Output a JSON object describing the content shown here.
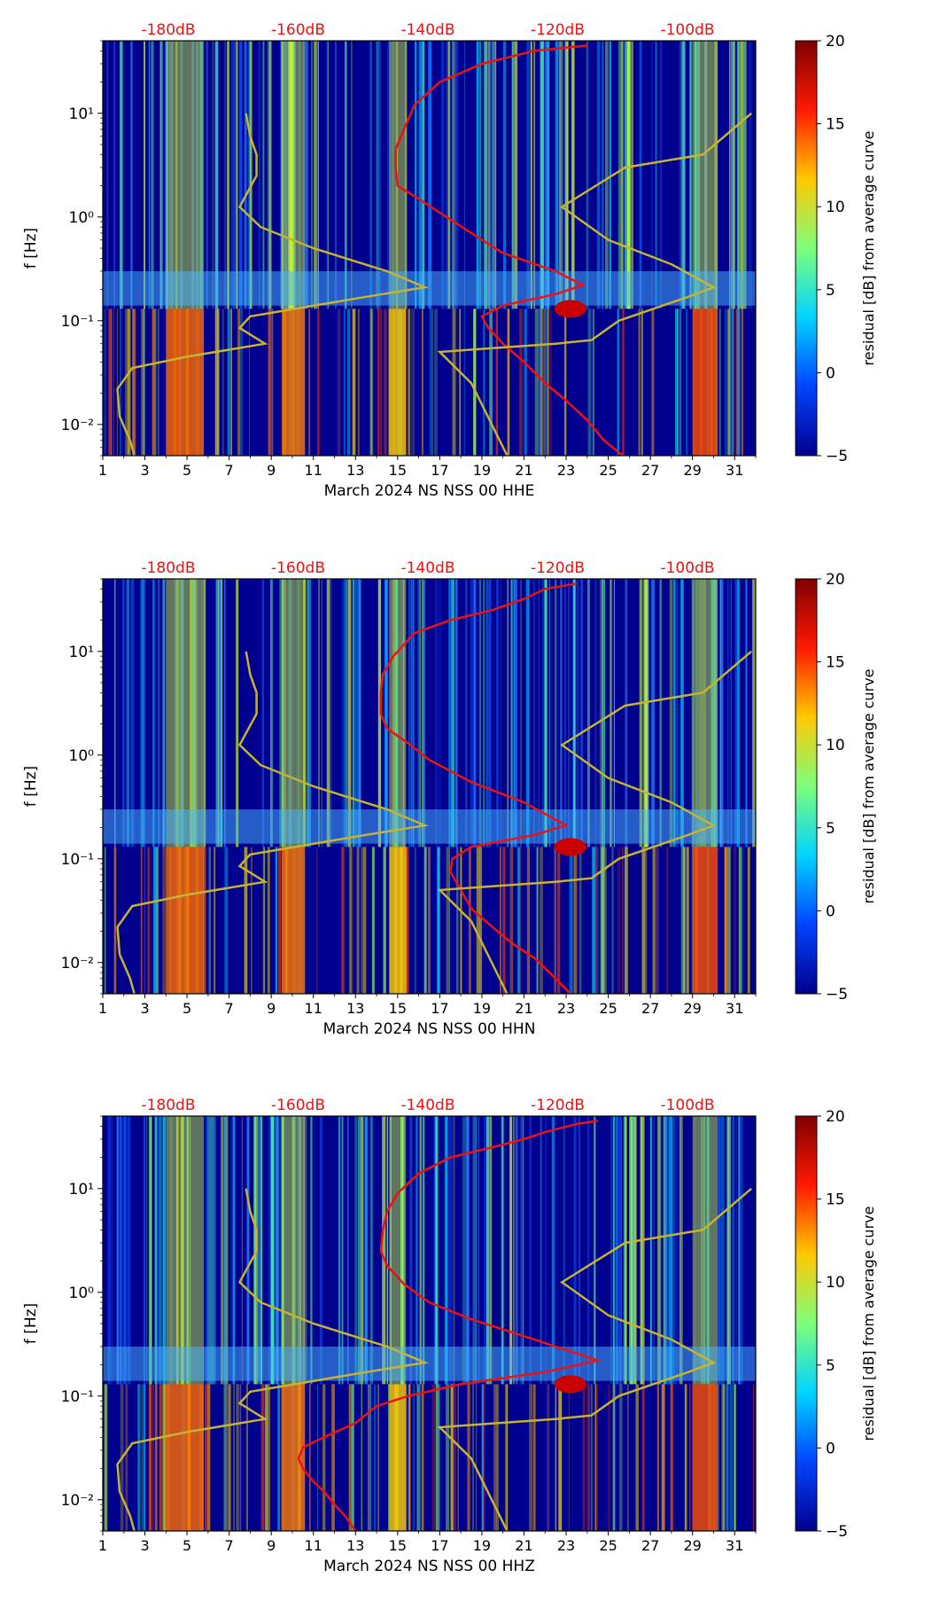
{
  "colorbar": {
    "label": "residual [dB] from average curve",
    "ticks": [
      "20",
      "15",
      "10",
      "5",
      "0",
      "−5"
    ],
    "tick_values": [
      20,
      15,
      10,
      5,
      0,
      -5
    ],
    "colors": [
      "#7f0000",
      "#ff1a00",
      "#ffc800",
      "#7dff7a",
      "#00d4ff",
      "#0044ff",
      "#00008f"
    ]
  },
  "colors": {
    "background": "#00008f",
    "psd_curve": "#ee1111",
    "model_curve": "#c8b232",
    "db_label": "#ee1111"
  },
  "chart_data": [
    {
      "type": "heatmap",
      "channel": "HHE",
      "xlabel": "March 2024 NS NSS 00 HHE",
      "ylabel": "f [Hz]",
      "xlim": [
        1,
        32
      ],
      "ylim": [
        0.005,
        50
      ],
      "yscale": "log",
      "x_ticks": [
        "1",
        "3",
        "5",
        "7",
        "9",
        "11",
        "13",
        "15",
        "17",
        "19",
        "21",
        "23",
        "25",
        "27",
        "29",
        "31"
      ],
      "y_ticks": [
        "10⁻²",
        "10⁻¹",
        "10⁰",
        "10¹"
      ],
      "top_labels": [
        "-180dB",
        "-160dB",
        "-140dB",
        "-120dB",
        "-100dB"
      ],
      "colorbar_range": [
        -5,
        20
      ],
      "series": [
        {
          "name": "mean PSD",
          "points": [
            [
              25.7,
              0.005
            ],
            [
              24.8,
              0.007
            ],
            [
              24.0,
              0.011
            ],
            [
              23.0,
              0.017
            ],
            [
              22.0,
              0.025
            ],
            [
              21.0,
              0.04
            ],
            [
              20.0,
              0.06
            ],
            [
              19.3,
              0.085
            ],
            [
              19.0,
              0.11
            ],
            [
              20.0,
              0.14
            ],
            [
              22.5,
              0.18
            ],
            [
              23.8,
              0.22
            ],
            [
              22.5,
              0.3
            ],
            [
              20.0,
              0.45
            ],
            [
              18.5,
              0.7
            ],
            [
              17.0,
              1.1
            ],
            [
              16.0,
              1.5
            ],
            [
              15.0,
              2.0
            ],
            [
              14.9,
              3.0
            ],
            [
              14.9,
              4.5
            ],
            [
              15.3,
              7
            ],
            [
              15.8,
              12
            ],
            [
              17.0,
              20
            ],
            [
              19.0,
              30
            ],
            [
              21.5,
              40
            ],
            [
              24.0,
              45
            ]
          ]
        },
        {
          "name": "noise model",
          "points": [
            [
              2.5,
              0.005
            ],
            [
              2.3,
              0.007
            ],
            [
              1.8,
              0.012
            ],
            [
              1.7,
              0.022
            ],
            [
              2.4,
              0.035
            ],
            [
              5.0,
              0.045
            ],
            [
              8.7,
              0.06
            ],
            [
              7.5,
              0.085
            ],
            [
              8.0,
              0.11
            ],
            [
              13.5,
              0.17
            ],
            [
              16.3,
              0.21
            ],
            [
              14.5,
              0.3
            ],
            [
              11.0,
              0.5
            ],
            [
              8.5,
              0.8
            ],
            [
              7.5,
              1.25
            ],
            [
              8.3,
              2.5
            ],
            [
              8.3,
              4
            ],
            [
              8.0,
              6
            ],
            [
              7.8,
              10
            ]
          ]
        },
        {
          "name": "noise model",
          "points": [
            [
              20.2,
              0.005
            ],
            [
              18.5,
              0.025
            ],
            [
              17.0,
              0.05
            ],
            [
              22.5,
              0.06
            ],
            [
              24.2,
              0.065
            ],
            [
              25.5,
              0.1
            ],
            [
              28.8,
              0.17
            ],
            [
              30.0,
              0.21
            ],
            [
              28.0,
              0.35
            ],
            [
              25.0,
              0.6
            ],
            [
              22.8,
              1.25
            ],
            [
              25.8,
              3
            ],
            [
              29.5,
              4
            ],
            [
              31.8,
              10
            ]
          ]
        }
      ]
    },
    {
      "type": "heatmap",
      "channel": "HHN",
      "xlabel": "March 2024 NS NSS 00 HHN",
      "ylabel": "f [Hz]",
      "xlim": [
        1,
        32
      ],
      "ylim": [
        0.005,
        50
      ],
      "yscale": "log",
      "x_ticks": [
        "1",
        "3",
        "5",
        "7",
        "9",
        "11",
        "13",
        "15",
        "17",
        "19",
        "21",
        "23",
        "25",
        "27",
        "29",
        "31"
      ],
      "y_ticks": [
        "10⁻²",
        "10⁻¹",
        "10⁰",
        "10¹"
      ],
      "top_labels": [
        "-180dB",
        "-160dB",
        "-140dB",
        "-120dB",
        "-100dB"
      ],
      "colorbar_range": [
        -5,
        20
      ],
      "series": [
        {
          "name": "mean PSD",
          "points": [
            [
              23.2,
              0.005
            ],
            [
              22.5,
              0.007
            ],
            [
              21.5,
              0.011
            ],
            [
              20.5,
              0.015
            ],
            [
              19.5,
              0.022
            ],
            [
              18.5,
              0.033
            ],
            [
              18.0,
              0.05
            ],
            [
              17.5,
              0.075
            ],
            [
              17.6,
              0.1
            ],
            [
              18.5,
              0.13
            ],
            [
              21.5,
              0.17
            ],
            [
              23.0,
              0.21
            ],
            [
              21.0,
              0.35
            ],
            [
              18.5,
              0.55
            ],
            [
              16.5,
              0.9
            ],
            [
              15.5,
              1.3
            ],
            [
              14.5,
              1.8
            ],
            [
              14.2,
              2.5
            ],
            [
              14.2,
              4
            ],
            [
              14.3,
              6
            ],
            [
              14.8,
              9
            ],
            [
              15.8,
              15
            ],
            [
              17.5,
              20
            ],
            [
              19.5,
              25
            ],
            [
              21.0,
              32
            ],
            [
              22.0,
              40
            ],
            [
              23.5,
              45
            ]
          ]
        },
        {
          "name": "noise model",
          "points": [
            [
              2.5,
              0.005
            ],
            [
              2.3,
              0.007
            ],
            [
              1.8,
              0.012
            ],
            [
              1.7,
              0.022
            ],
            [
              2.4,
              0.035
            ],
            [
              5.0,
              0.045
            ],
            [
              8.7,
              0.06
            ],
            [
              7.5,
              0.085
            ],
            [
              8.0,
              0.11
            ],
            [
              13.5,
              0.17
            ],
            [
              16.3,
              0.21
            ],
            [
              14.5,
              0.3
            ],
            [
              11.0,
              0.5
            ],
            [
              8.5,
              0.8
            ],
            [
              7.5,
              1.25
            ],
            [
              8.3,
              2.5
            ],
            [
              8.3,
              4
            ],
            [
              8.0,
              6
            ],
            [
              7.8,
              10
            ]
          ]
        },
        {
          "name": "noise model",
          "points": [
            [
              20.2,
              0.005
            ],
            [
              18.5,
              0.025
            ],
            [
              17.0,
              0.05
            ],
            [
              22.5,
              0.06
            ],
            [
              24.2,
              0.065
            ],
            [
              25.5,
              0.1
            ],
            [
              28.8,
              0.17
            ],
            [
              30.0,
              0.21
            ],
            [
              28.0,
              0.35
            ],
            [
              25.0,
              0.6
            ],
            [
              22.8,
              1.25
            ],
            [
              25.8,
              3
            ],
            [
              29.5,
              4
            ],
            [
              31.8,
              10
            ]
          ]
        }
      ]
    },
    {
      "type": "heatmap",
      "channel": "HHZ",
      "xlabel": "March 2024 NS NSS 00 HHZ",
      "ylabel": "f [Hz]",
      "xlim": [
        1,
        32
      ],
      "ylim": [
        0.005,
        50
      ],
      "yscale": "log",
      "x_ticks": [
        "1",
        "3",
        "5",
        "7",
        "9",
        "11",
        "13",
        "15",
        "17",
        "19",
        "21",
        "23",
        "25",
        "27",
        "29",
        "31"
      ],
      "y_ticks": [
        "10⁻²",
        "10⁻¹",
        "10⁰",
        "10¹"
      ],
      "top_labels": [
        "-180dB",
        "-160dB",
        "-140dB",
        "-120dB",
        "-100dB"
      ],
      "colorbar_range": [
        -5,
        20
      ],
      "series": [
        {
          "name": "mean PSD",
          "points": [
            [
              13.0,
              0.005
            ],
            [
              12.5,
              0.007
            ],
            [
              12.0,
              0.009
            ],
            [
              11.5,
              0.012
            ],
            [
              11.0,
              0.015
            ],
            [
              10.5,
              0.02
            ],
            [
              10.3,
              0.025
            ],
            [
              10.5,
              0.032
            ],
            [
              11.5,
              0.04
            ],
            [
              13.0,
              0.055
            ],
            [
              14.0,
              0.08
            ],
            [
              15.5,
              0.1
            ],
            [
              18.0,
              0.13
            ],
            [
              22.0,
              0.17
            ],
            [
              24.5,
              0.22
            ],
            [
              21.5,
              0.35
            ],
            [
              18.5,
              0.55
            ],
            [
              16.5,
              0.8
            ],
            [
              15.3,
              1.2
            ],
            [
              14.5,
              1.8
            ],
            [
              14.2,
              2.5
            ],
            [
              14.3,
              4
            ],
            [
              14.5,
              6
            ],
            [
              15.0,
              9
            ],
            [
              16.0,
              14
            ],
            [
              17.5,
              20
            ],
            [
              19.5,
              25
            ],
            [
              21.0,
              30
            ],
            [
              22.0,
              35
            ],
            [
              23.5,
              42
            ],
            [
              24.5,
              45
            ]
          ]
        },
        {
          "name": "noise model",
          "points": [
            [
              2.5,
              0.005
            ],
            [
              2.3,
              0.007
            ],
            [
              1.8,
              0.012
            ],
            [
              1.7,
              0.022
            ],
            [
              2.4,
              0.035
            ],
            [
              5.0,
              0.045
            ],
            [
              8.7,
              0.06
            ],
            [
              7.5,
              0.085
            ],
            [
              8.0,
              0.11
            ],
            [
              13.5,
              0.17
            ],
            [
              16.3,
              0.21
            ],
            [
              14.5,
              0.3
            ],
            [
              11.0,
              0.5
            ],
            [
              8.5,
              0.8
            ],
            [
              7.5,
              1.25
            ],
            [
              8.3,
              2.5
            ],
            [
              8.3,
              4
            ],
            [
              8.0,
              6
            ],
            [
              7.8,
              10
            ]
          ]
        },
        {
          "name": "noise model",
          "points": [
            [
              20.2,
              0.005
            ],
            [
              18.5,
              0.025
            ],
            [
              17.0,
              0.05
            ],
            [
              22.5,
              0.06
            ],
            [
              24.2,
              0.065
            ],
            [
              25.5,
              0.1
            ],
            [
              28.8,
              0.17
            ],
            [
              30.0,
              0.21
            ],
            [
              28.0,
              0.35
            ],
            [
              25.0,
              0.6
            ],
            [
              22.8,
              1.25
            ],
            [
              25.8,
              3
            ],
            [
              29.5,
              4
            ],
            [
              31.8,
              10
            ]
          ]
        }
      ]
    }
  ]
}
